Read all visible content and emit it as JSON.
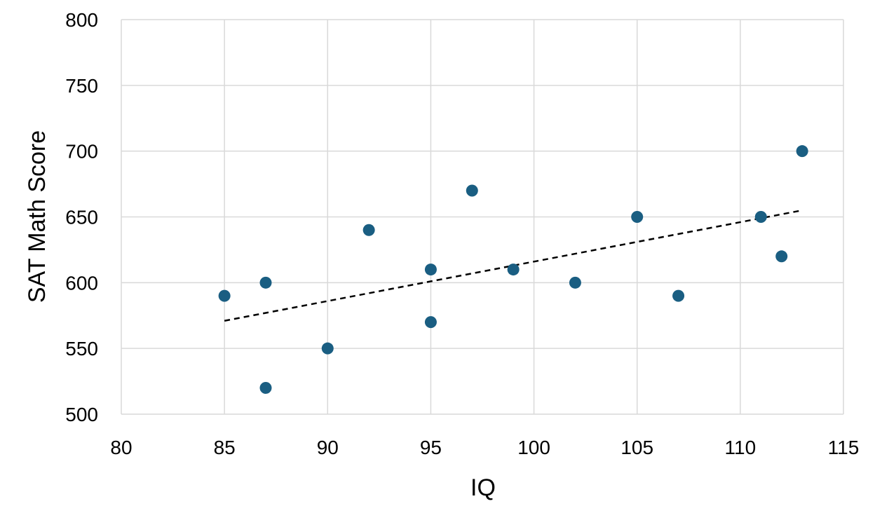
{
  "chart_data": {
    "type": "scatter",
    "title": "",
    "xlabel": "IQ",
    "ylabel": "SAT Math Score",
    "xlim": [
      80,
      115
    ],
    "ylim": [
      500,
      800
    ],
    "xticks": [
      80,
      85,
      90,
      95,
      100,
      105,
      110,
      115
    ],
    "yticks": [
      500,
      550,
      600,
      650,
      700,
      750,
      800
    ],
    "grid": true,
    "legend": "none",
    "series": [
      {
        "points": [
          {
            "x": 85,
            "y": 590
          },
          {
            "x": 87,
            "y": 600
          },
          {
            "x": 87,
            "y": 520
          },
          {
            "x": 90,
            "y": 550
          },
          {
            "x": 92,
            "y": 640
          },
          {
            "x": 95,
            "y": 610
          },
          {
            "x": 95,
            "y": 570
          },
          {
            "x": 97,
            "y": 670
          },
          {
            "x": 99,
            "y": 610
          },
          {
            "x": 102,
            "y": 600
          },
          {
            "x": 105,
            "y": 650
          },
          {
            "x": 107,
            "y": 590
          },
          {
            "x": 111,
            "y": 650
          },
          {
            "x": 112,
            "y": 620
          },
          {
            "x": 113,
            "y": 700
          }
        ],
        "color": "#1a5e82"
      }
    ],
    "trendline": {
      "type": "linear",
      "style": "dashed",
      "color": "#000000",
      "start": {
        "x": 85,
        "y": 571
      },
      "end": {
        "x": 113,
        "y": 655
      }
    },
    "colors": {
      "grid": "#d9d9d9",
      "marker": "#1a5e82"
    }
  }
}
